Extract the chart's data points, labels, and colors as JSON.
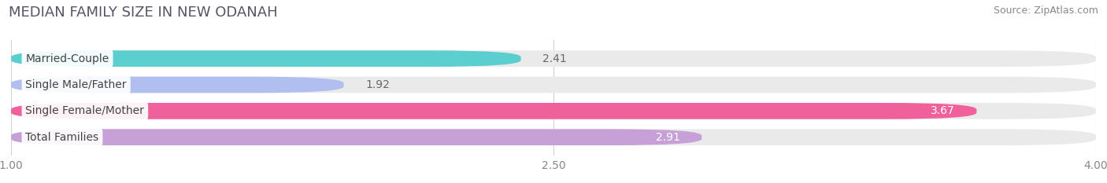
{
  "title": "MEDIAN FAMILY SIZE IN NEW ODANAH",
  "source": "Source: ZipAtlas.com",
  "categories": [
    "Married-Couple",
    "Single Male/Father",
    "Single Female/Mother",
    "Total Families"
  ],
  "values": [
    2.41,
    1.92,
    3.67,
    2.91
  ],
  "bar_colors": [
    "#5bcfcf",
    "#b0bef0",
    "#f0609a",
    "#c8a0d8"
  ],
  "bg_bar_color": "#eaeaea",
  "xlim_min": 1.0,
  "xlim_max": 4.0,
  "xticks": [
    1.0,
    2.5,
    4.0
  ],
  "xtick_labels": [
    "1.00",
    "2.50",
    "4.00"
  ],
  "value_inside": [
    false,
    false,
    true,
    true
  ],
  "background_color": "#ffffff",
  "title_fontsize": 13,
  "source_fontsize": 9,
  "bar_label_fontsize": 10,
  "value_fontsize": 10,
  "tick_fontsize": 10,
  "grid_color": "#d0d0d0",
  "title_color": "#555566",
  "source_color": "#888888",
  "bar_label_color": "#444444",
  "value_color_outside": "#666666",
  "value_color_inside": "#ffffff"
}
